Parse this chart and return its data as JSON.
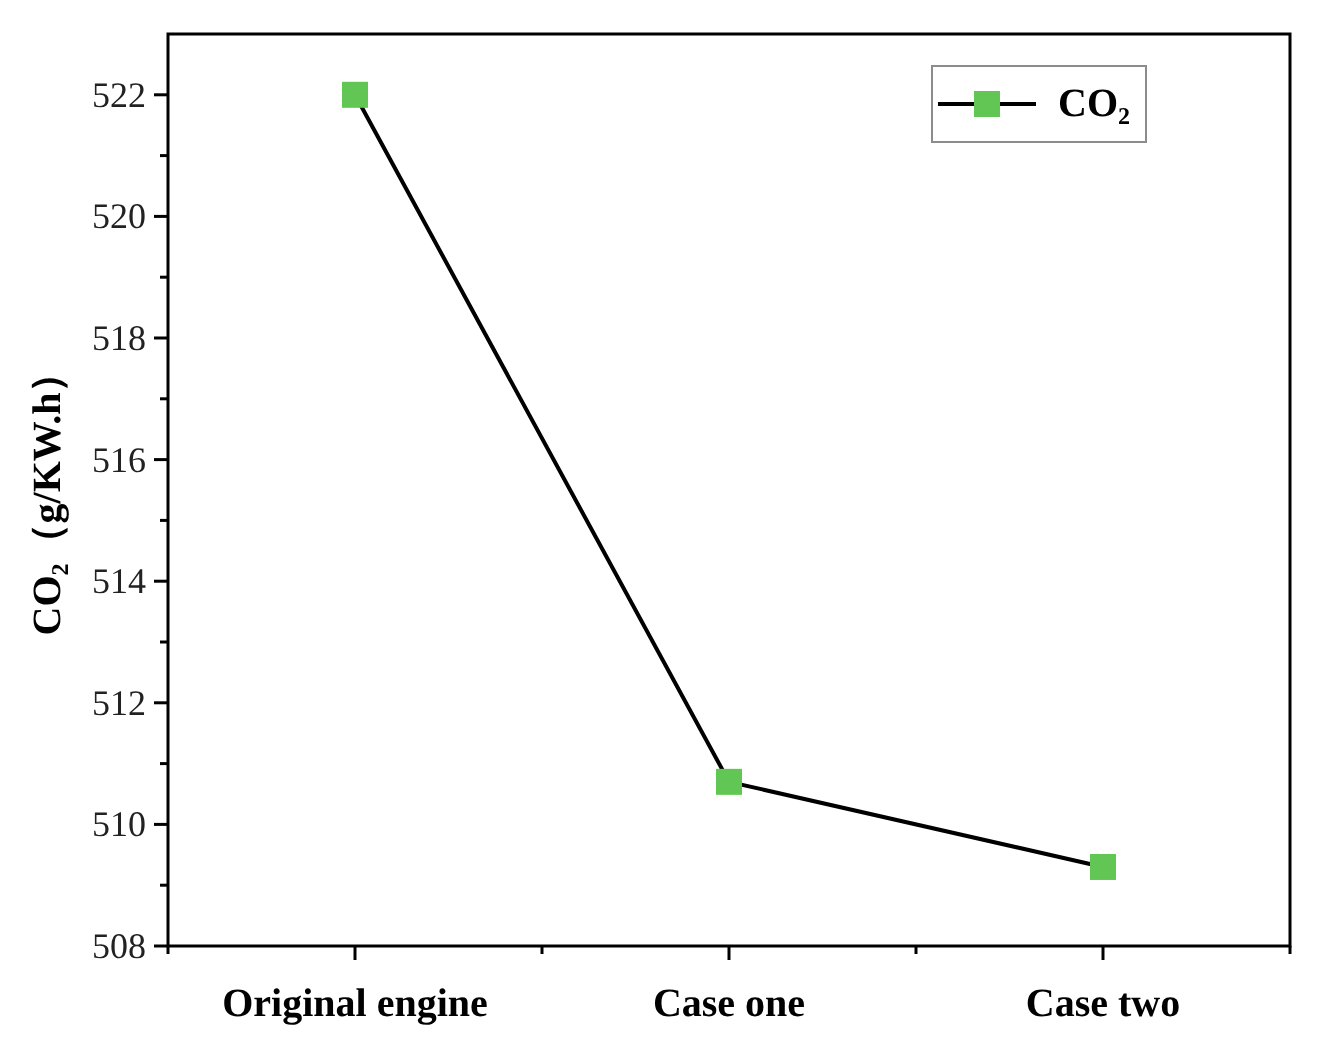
{
  "chart_data": {
    "type": "line",
    "ylabel": "CO₂（g/KW.h）",
    "categories": [
      "Original engine",
      "Case one",
      "Case two"
    ],
    "series": [
      {
        "name": "CO₂",
        "color": "#000000",
        "colors": [
          "#62c654",
          "#62c654",
          "#62c654"
        ],
        "values": [
          522.0,
          510.7,
          509.3
        ]
      }
    ],
    "ylim": [
      508,
      523
    ],
    "yticks": [
      508,
      {
        "value": 509,
        "label": null
      },
      510,
      {
        "value": 511,
        "label": null
      },
      512,
      {
        "value": 513,
        "label": null
      },
      514,
      {
        "value": 515,
        "label": null
      },
      516,
      {
        "value": 517,
        "label": null
      },
      518,
      {
        "value": 519,
        "label": null
      },
      520,
      {
        "value": 521,
        "label": null
      },
      522
    ],
    "marker": "square",
    "line_style": "solid",
    "legend": "top right",
    "grid": false
  }
}
